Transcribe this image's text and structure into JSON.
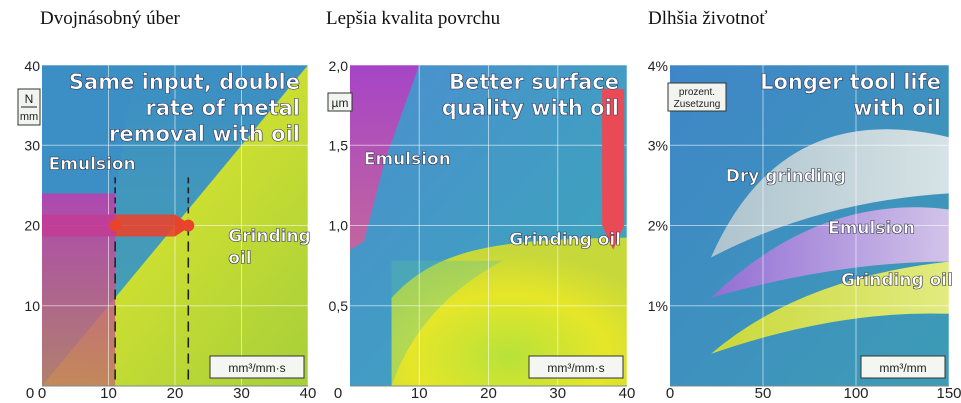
{
  "captions": [
    "Dvojnásobný úber",
    "Lepšia kvalita povrchu",
    "Dlhšia životnoť"
  ],
  "chart_data": [
    {
      "type": "area",
      "title": [
        "Same input, double",
        "rate of metal",
        "removal with oil"
      ],
      "unit_label": [
        "N",
        "mm"
      ],
      "xunit": "mm³/mm·s",
      "xticks": [
        0,
        10,
        20,
        30,
        40
      ],
      "yticks": [
        10,
        20,
        30,
        40
      ],
      "xlim": [
        0,
        40
      ],
      "ylim": [
        0,
        40
      ],
      "series": [
        {
          "name": "Emulsion",
          "color": "#c03a9e",
          "points": [
            [
              0,
              0
            ],
            [
              0,
              24
            ],
            [
              11,
              24
            ],
            [
              11,
              0
            ]
          ]
        },
        {
          "name": "Grinding oil",
          "color": "#e6e21a",
          "points": [
            [
              0,
              0
            ],
            [
              40,
              0
            ],
            [
              40,
              40
            ]
          ]
        }
      ],
      "markers": [
        {
          "x": 11,
          "y": 20,
          "color": "#e8442c"
        },
        {
          "x": 22,
          "y": 20,
          "color": "#e8442c"
        }
      ],
      "arrow": {
        "from": [
          0,
          20
        ],
        "to": [
          22,
          20
        ],
        "color": "#e8442c"
      },
      "dashed_x": [
        11,
        22
      ],
      "labels": [
        {
          "text": [
            "Emulsion"
          ],
          "x": 1,
          "y": 27
        },
        {
          "text": [
            "Grinding",
            "oil"
          ],
          "x": 28,
          "y": 18
        }
      ]
    },
    {
      "type": "area",
      "title": [
        "Better surface",
        "quality with oil"
      ],
      "unit_label": [
        "µm"
      ],
      "xunit": "mm³/mm·s",
      "xticks": [
        10,
        20,
        30,
        40
      ],
      "yticks": [
        0.5,
        1.0,
        1.5,
        2.0
      ],
      "ytick_labels": [
        "0,5",
        "1,0",
        "1,5",
        "2,0"
      ],
      "xlim": [
        0,
        40
      ],
      "ylim": [
        0,
        2.0
      ],
      "series": [
        {
          "name": "Emulsion",
          "color": "#c03a9e"
        },
        {
          "name": "Grinding oil",
          "color": "#e6e21a"
        }
      ],
      "arrow": {
        "from": [
          38,
          1.85
        ],
        "to": [
          38,
          0.85
        ],
        "color": "#ea4a55"
      },
      "labels": [
        {
          "text": [
            "Emulsion"
          ],
          "x": 2,
          "y": 1.38
        },
        {
          "text": [
            "Grinding oil"
          ],
          "x": 23,
          "y": 0.88
        }
      ]
    },
    {
      "type": "area",
      "title": [
        "Longer tool life",
        "with oil"
      ],
      "unit_label": [
        "prozent.",
        "Zusetzung"
      ],
      "xunit": "mm³/mm",
      "xticks": [
        0,
        50,
        100,
        150
      ],
      "yticks": [
        1,
        2,
        3,
        4
      ],
      "ytick_labels": [
        "1%",
        "2%",
        "3%",
        "4%"
      ],
      "xlim": [
        0,
        150
      ],
      "ylim": [
        0,
        4
      ],
      "series": [
        {
          "name": "Dry grinding",
          "color": "#d8d8d8"
        },
        {
          "name": "Emulsion",
          "color": "#c9a5e3"
        },
        {
          "name": "Grinding oil",
          "color": "#e6e21a"
        }
      ],
      "labels": [
        {
          "text": [
            "Dry grinding"
          ],
          "x": 30,
          "y": 2.55
        },
        {
          "text": [
            "Emulsion"
          ],
          "x": 85,
          "y": 1.9
        },
        {
          "text": [
            "Grinding oil"
          ],
          "x": 92,
          "y": 1.25
        }
      ]
    }
  ]
}
